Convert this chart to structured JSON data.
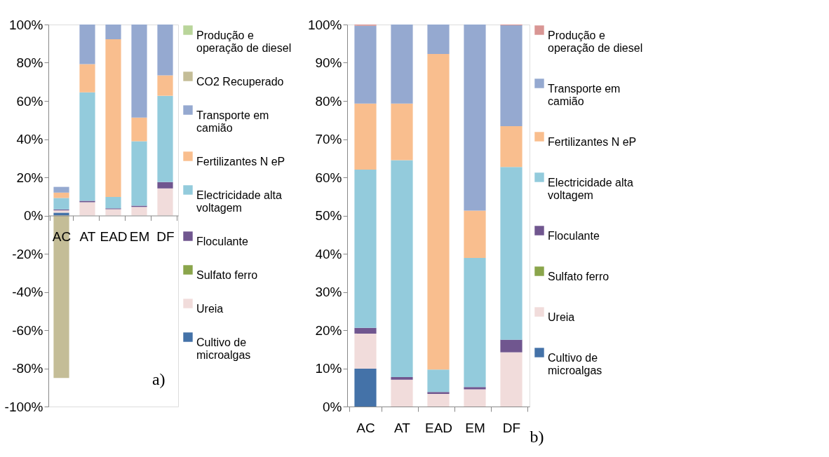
{
  "chart_data": [
    {
      "type": "bar",
      "stacked": true,
      "categories": [
        "AC",
        "AT",
        "EAD",
        "EM",
        "DF"
      ],
      "series": [
        {
          "name": "Cultivo de microalgas",
          "color": "#4472a8",
          "values": [
            1.5,
            0,
            0,
            0,
            0
          ]
        },
        {
          "name": "Ureia",
          "color": "#f1dcdb",
          "values": [
            1.2,
            7,
            3.3,
            4.5,
            14.2
          ]
        },
        {
          "name": "Sulfato ferro",
          "color": "#8aa54b",
          "values": [
            0,
            0,
            0,
            0,
            0
          ]
        },
        {
          "name": "Floculante",
          "color": "#70568f",
          "values": [
            0.5,
            0.7,
            0.5,
            0.6,
            3.3
          ]
        },
        {
          "name": "Electricidade alta voltagem",
          "color": "#93cbdc",
          "values": [
            6,
            56.8,
            5.9,
            33.8,
            45.2
          ]
        },
        {
          "name": "Fertilizantes N eP",
          "color": "#f9be8e",
          "values": [
            2.8,
            14.8,
            82.6,
            12.4,
            10.7
          ]
        },
        {
          "name": "Transporte em camião",
          "color": "#95a9d0",
          "values": [
            3,
            20.7,
            7.7,
            48.7,
            26.6
          ]
        },
        {
          "name": "CO2 Recuperado",
          "color": "#c4bd97",
          "values": [
            -85,
            0,
            0,
            0,
            0
          ]
        },
        {
          "name": "Produção e operação de diesel",
          "color": "#b9d59a",
          "values": [
            0,
            0,
            0,
            0,
            0
          ]
        }
      ],
      "ylim": [
        -100,
        100
      ],
      "yticks": [
        {
          "value": -100,
          "label": "-100%"
        },
        {
          "value": -80,
          "label": "-80%"
        },
        {
          "value": -60,
          "label": "-60%"
        },
        {
          "value": -40,
          "label": "-40%"
        },
        {
          "value": -20,
          "label": "-20%"
        },
        {
          "value": 0,
          "label": "0%"
        },
        {
          "value": 20,
          "label": "20%"
        },
        {
          "value": 40,
          "label": "40%"
        },
        {
          "value": 60,
          "label": "60%"
        },
        {
          "value": 80,
          "label": "80%"
        },
        {
          "value": 100,
          "label": "100%"
        }
      ],
      "grid": false,
      "legend": "right",
      "annotations": [
        "a)"
      ]
    },
    {
      "type": "bar",
      "stacked": true,
      "categories": [
        "AC",
        "AT",
        "EAD",
        "EM",
        "DF"
      ],
      "series": [
        {
          "name": "Cultivo de microalgas",
          "color": "#4472a8",
          "values": [
            9.9,
            0,
            0,
            0,
            0
          ]
        },
        {
          "name": "Ureia",
          "color": "#f1dcdb",
          "values": [
            9.2,
            7,
            3.3,
            4.5,
            14.2
          ]
        },
        {
          "name": "Sulfato ferro",
          "color": "#8aa54b",
          "values": [
            0,
            0,
            0,
            0,
            0
          ]
        },
        {
          "name": "Floculante",
          "color": "#70568f",
          "values": [
            1.5,
            0.7,
            0.5,
            0.6,
            3.3
          ]
        },
        {
          "name": "Electricidade alta voltagem",
          "color": "#93cbdc",
          "values": [
            41.4,
            56.8,
            5.9,
            33.8,
            45.2
          ]
        },
        {
          "name": "Fertilizantes N eP",
          "color": "#f9be8e",
          "values": [
            17.3,
            14.8,
            82.6,
            12.4,
            10.7
          ]
        },
        {
          "name": "Transporte em camião",
          "color": "#95a9d0",
          "values": [
            20.4,
            20.7,
            7.7,
            48.7,
            26.4
          ]
        },
        {
          "name": "Produção e operação de diesel",
          "color": "#d99694",
          "values": [
            0.3,
            0,
            0,
            0,
            0.2
          ]
        }
      ],
      "ylim": [
        0,
        100
      ],
      "yticks": [
        {
          "value": 0,
          "label": "0%"
        },
        {
          "value": 10,
          "label": "10%"
        },
        {
          "value": 20,
          "label": "20%"
        },
        {
          "value": 30,
          "label": "30%"
        },
        {
          "value": 40,
          "label": "40%"
        },
        {
          "value": 50,
          "label": "50%"
        },
        {
          "value": 60,
          "label": "60%"
        },
        {
          "value": 70,
          "label": "70%"
        },
        {
          "value": 80,
          "label": "80%"
        },
        {
          "value": 90,
          "label": "90%"
        },
        {
          "value": 100,
          "label": "100%"
        }
      ],
      "grid": false,
      "legend": "right",
      "annotations": [
        "b)"
      ]
    }
  ]
}
